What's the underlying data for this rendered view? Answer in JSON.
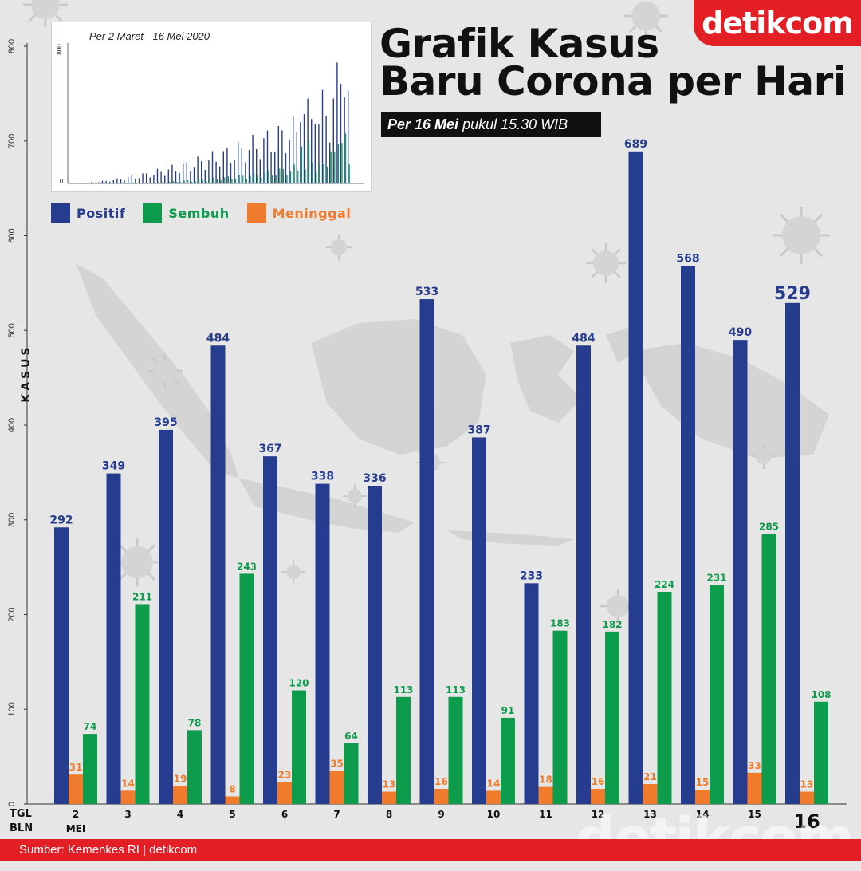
{
  "brand": "detikcom",
  "watermark": "detikcom",
  "title_line1": "Grafik Kasus",
  "title_line2": "Baru Corona per Hari",
  "subtitle_bold": "Per 16 Mei",
  "subtitle_rest": "pukul 15.30 WIB",
  "inset": {
    "caption": "Per 2 Maret -  16 Mei 2020",
    "yticks": [
      "800",
      "0"
    ],
    "ymax": 800
  },
  "legend": [
    {
      "name": "Positif",
      "color": "#263d8f"
    },
    {
      "name": "Sembuh",
      "color": "#0d9b4c"
    },
    {
      "name": "Meninggal",
      "color": "#f07b2d"
    }
  ],
  "colors": {
    "positif": "#263d8f",
    "sembuh": "#0d9b4c",
    "meninggal": "#f07b2d",
    "accent": "#e31e24"
  },
  "row_tgl": "TGL",
  "row_bln": "BLN",
  "month": "MEI",
  "footer": "Sumber: Kemenkes RI | detikcom",
  "chart_data": {
    "type": "bar",
    "title": "Grafik Kasus Baru Corona per Hari",
    "ylabel": "KASUS",
    "ylim": [
      0,
      800
    ],
    "yticks": [
      0,
      100,
      200,
      300,
      400,
      500,
      600,
      700,
      800
    ],
    "categories": [
      "2",
      "3",
      "4",
      "5",
      "6",
      "7",
      "8",
      "9",
      "10",
      "11",
      "12",
      "13",
      "14",
      "15",
      "16"
    ],
    "series": [
      {
        "name": "Positif",
        "values": [
          292,
          349,
          395,
          484,
          367,
          338,
          336,
          533,
          387,
          233,
          484,
          689,
          568,
          490,
          529
        ]
      },
      {
        "name": "Sembuh",
        "values": [
          74,
          211,
          78,
          243,
          120,
          64,
          113,
          113,
          91,
          183,
          182,
          224,
          231,
          285,
          108
        ]
      },
      {
        "name": "Meninggal",
        "values": [
          31,
          14,
          19,
          8,
          23,
          35,
          13,
          16,
          14,
          18,
          16,
          21,
          15,
          33,
          13
        ]
      }
    ],
    "legend_position": "top-left",
    "grid": false,
    "inset": {
      "type": "bar",
      "x_range": [
        "2 Maret",
        "16 Mei 2020"
      ],
      "ylim": [
        0,
        800
      ]
    }
  }
}
